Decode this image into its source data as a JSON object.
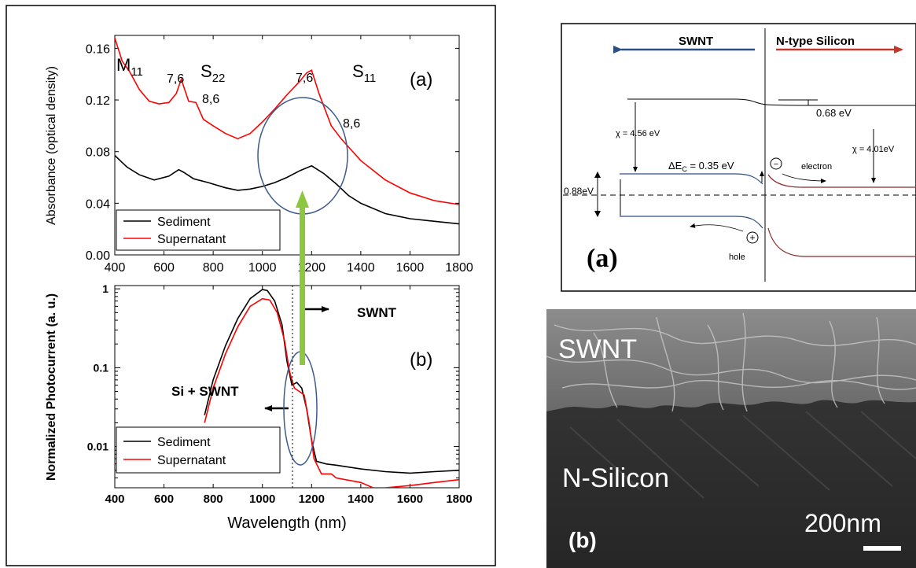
{
  "chart_data": [
    {
      "type": "line",
      "panel_label": "(a)",
      "xlabel": "",
      "ylabel": "Absorbance (optical density)",
      "xlim": [
        400,
        1800
      ],
      "ylim": [
        0.0,
        0.17
      ],
      "x_ticks": [
        "400",
        "600",
        "800",
        "1000",
        "1200",
        "1400",
        "1600",
        "1800"
      ],
      "y_ticks": [
        "0.00",
        "0.04",
        "0.08",
        "0.12",
        "0.16"
      ],
      "legend": {
        "placement": "bottom-left",
        "entries": [
          "Sediment",
          "Supernatant"
        ]
      },
      "annotations": {
        "m11": "M",
        "m11_sub": "11",
        "s22": "S",
        "s22_sub": "22",
        "s11": "S",
        "s11_sub": "11",
        "p1": "7,6",
        "p2": "8,6",
        "p3": "7,6",
        "p4": "8,6"
      },
      "series": [
        {
          "name": "Sediment",
          "color": "#000000",
          "x": [
            400,
            450,
            500,
            560,
            620,
            660,
            680,
            720,
            780,
            850,
            900,
            950,
            1000,
            1050,
            1100,
            1150,
            1200,
            1250,
            1300,
            1350,
            1400,
            1500,
            1600,
            1700,
            1800
          ],
          "y": [
            0.077,
            0.068,
            0.062,
            0.058,
            0.061,
            0.066,
            0.064,
            0.059,
            0.056,
            0.052,
            0.05,
            0.051,
            0.053,
            0.056,
            0.06,
            0.065,
            0.069,
            0.063,
            0.055,
            0.046,
            0.04,
            0.032,
            0.028,
            0.026,
            0.024
          ]
        },
        {
          "name": "Supernatant",
          "color": "#ff0000",
          "x": [
            400,
            430,
            460,
            500,
            540,
            580,
            620,
            650,
            670,
            700,
            730,
            760,
            800,
            850,
            900,
            950,
            1000,
            1050,
            1100,
            1150,
            1180,
            1200,
            1230,
            1280,
            1320,
            1400,
            1500,
            1600,
            1700,
            1800
          ],
          "y": [
            0.168,
            0.15,
            0.142,
            0.128,
            0.119,
            0.117,
            0.118,
            0.125,
            0.136,
            0.119,
            0.118,
            0.105,
            0.1,
            0.094,
            0.09,
            0.094,
            0.103,
            0.113,
            0.124,
            0.134,
            0.141,
            0.143,
            0.125,
            0.1,
            0.09,
            0.073,
            0.058,
            0.048,
            0.042,
            0.039
          ]
        }
      ]
    },
    {
      "type": "line",
      "panel_label": "(b)",
      "xlabel": "Wavelength (nm)",
      "ylabel": "Normalized Photocurrent (a. u.)",
      "yscale": "log",
      "xlim": [
        400,
        1800
      ],
      "ylim": [
        0.003,
        1.1
      ],
      "x_ticks": [
        "400",
        "600",
        "800",
        "1000",
        "1200",
        "1400",
        "1600",
        "1800"
      ],
      "y_ticks": [
        "1",
        "0.1",
        "0.01"
      ],
      "legend": {
        "placement": "bottom-left",
        "entries": [
          "Sediment",
          "Supernatant"
        ]
      },
      "annotations": {
        "swnt": "SWNT",
        "si_swnt": "Si + SWNT"
      },
      "series": [
        {
          "name": "Sediment",
          "color": "#000000",
          "x": [
            765,
            800,
            850,
            900,
            950,
            1000,
            1020,
            1050,
            1080,
            1100,
            1120,
            1140,
            1160,
            1180,
            1200,
            1220,
            1260,
            1300,
            1400,
            1500,
            1600,
            1700,
            1800
          ],
          "y": [
            0.025,
            0.07,
            0.19,
            0.42,
            0.75,
            0.98,
            0.95,
            0.7,
            0.35,
            0.12,
            0.06,
            0.065,
            0.055,
            0.03,
            0.012,
            0.0065,
            0.006,
            0.0058,
            0.0052,
            0.0048,
            0.0046,
            0.0048,
            0.005
          ]
        },
        {
          "name": "Supernatant",
          "color": "#ff0000",
          "x": [
            765,
            800,
            850,
            900,
            950,
            1000,
            1030,
            1060,
            1090,
            1110,
            1130,
            1150,
            1170,
            1190,
            1210,
            1240,
            1280,
            1300,
            1400,
            1450,
            1500,
            1600,
            1700,
            1800
          ],
          "y": [
            0.02,
            0.055,
            0.15,
            0.33,
            0.6,
            0.75,
            0.72,
            0.5,
            0.22,
            0.09,
            0.055,
            0.05,
            0.045,
            0.02,
            0.007,
            0.0045,
            0.0045,
            0.004,
            0.0035,
            0.003,
            0.003,
            0.0032,
            0.0035,
            0.0038
          ]
        }
      ]
    }
  ],
  "band_diagram": {
    "panel_label": "(a)",
    "swnt_label": "SWNT",
    "silicon_label": "N-type Silicon",
    "chi_swnt": "χ = 4.56 eV",
    "chi_si": "χ = 4.01eV",
    "offset_vac": "0.68 eV",
    "delta_ec": "ΔE",
    "delta_ec_sub": "C",
    "delta_ec_value": " = 0.35 eV",
    "left_gap": "0.88eV",
    "electron_label": "electron",
    "hole_label": "hole",
    "electron_symbol": "−",
    "hole_symbol": "+"
  },
  "sem": {
    "top_label": "SWNT",
    "bottom_label": "N-Silicon",
    "scale_label": "200nm",
    "panel_label": "(b)"
  },
  "colors": {
    "supernatant": "#ff0000",
    "sediment": "#000000",
    "arrow_green": "#8dc63f",
    "ellipse": "#3c5a8c",
    "swnt_arrow": "#2e4f86",
    "si_arrow": "#c0392b",
    "band_blue": "#2e4f86",
    "band_red": "#8b2b2b"
  }
}
